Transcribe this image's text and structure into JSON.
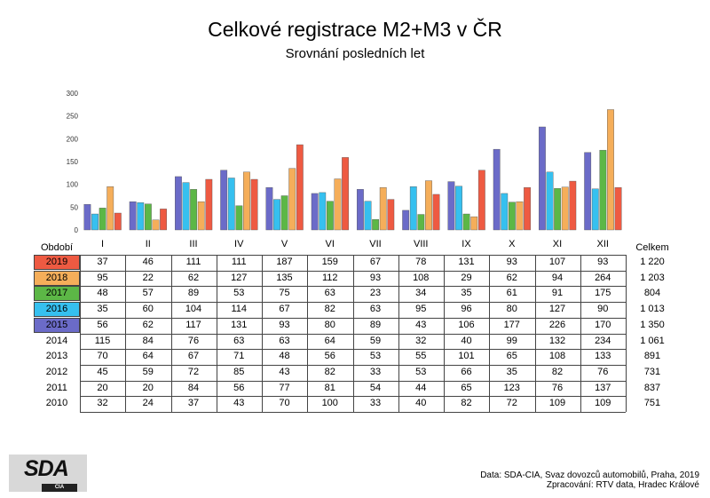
{
  "header": {
    "title": "Celkové registrace M2+M3 v ČR",
    "subtitle": "Srovnání posledních let"
  },
  "table": {
    "period_header": "Období",
    "total_header": "Celkem"
  },
  "footer": {
    "logo_text": "SDA",
    "logo_sub": "CIA",
    "source_line1": "Data: SDA-CIA, Svaz dovozců automobilů, Praha, 2019",
    "source_line2": "Zpracování: RTV data, Hradec Králové"
  },
  "chart_data": {
    "type": "bar",
    "categories": [
      "I",
      "II",
      "III",
      "IV",
      "V",
      "VI",
      "VII",
      "VIII",
      "IX",
      "X",
      "XI",
      "XII"
    ],
    "ylim": [
      0,
      300
    ],
    "yticks": [
      0,
      50,
      100,
      150,
      200,
      250,
      300
    ],
    "series": [
      {
        "name": "2015",
        "color": "#6b6bc8",
        "values": [
          56,
          62,
          117,
          131,
          93,
          80,
          89,
          43,
          106,
          177,
          226,
          170
        ],
        "total": "1 350"
      },
      {
        "name": "2016",
        "color": "#36c0ef",
        "values": [
          35,
          60,
          104,
          114,
          67,
          82,
          63,
          95,
          96,
          80,
          127,
          90
        ],
        "total": "1 013"
      },
      {
        "name": "2017",
        "color": "#5cb746",
        "values": [
          48,
          57,
          89,
          53,
          75,
          63,
          23,
          34,
          35,
          61,
          91,
          175
        ],
        "total": "804"
      },
      {
        "name": "2018",
        "color": "#f5ae5a",
        "values": [
          95,
          22,
          62,
          127,
          135,
          112,
          93,
          108,
          29,
          62,
          94,
          264
        ],
        "total": "1 203"
      },
      {
        "name": "2019",
        "color": "#ee5a42",
        "values": [
          37,
          46,
          111,
          111,
          187,
          159,
          67,
          78,
          131,
          93,
          107,
          93
        ],
        "total": "1 220"
      }
    ],
    "table_only": [
      {
        "name": "2014",
        "values": [
          115,
          84,
          76,
          63,
          63,
          64,
          59,
          32,
          40,
          99,
          132,
          234
        ],
        "total": "1 061"
      },
      {
        "name": "2013",
        "values": [
          70,
          64,
          67,
          71,
          48,
          56,
          53,
          55,
          101,
          65,
          108,
          133
        ],
        "total": "891"
      },
      {
        "name": "2012",
        "values": [
          45,
          59,
          72,
          85,
          43,
          82,
          33,
          53,
          66,
          35,
          82,
          76
        ],
        "total": "731"
      },
      {
        "name": "2011",
        "values": [
          20,
          20,
          84,
          56,
          77,
          81,
          54,
          44,
          65,
          123,
          76,
          137
        ],
        "total": "837"
      },
      {
        "name": "2010",
        "values": [
          32,
          24,
          37,
          43,
          70,
          100,
          33,
          40,
          82,
          72,
          109,
          109
        ],
        "total": "751"
      }
    ]
  }
}
